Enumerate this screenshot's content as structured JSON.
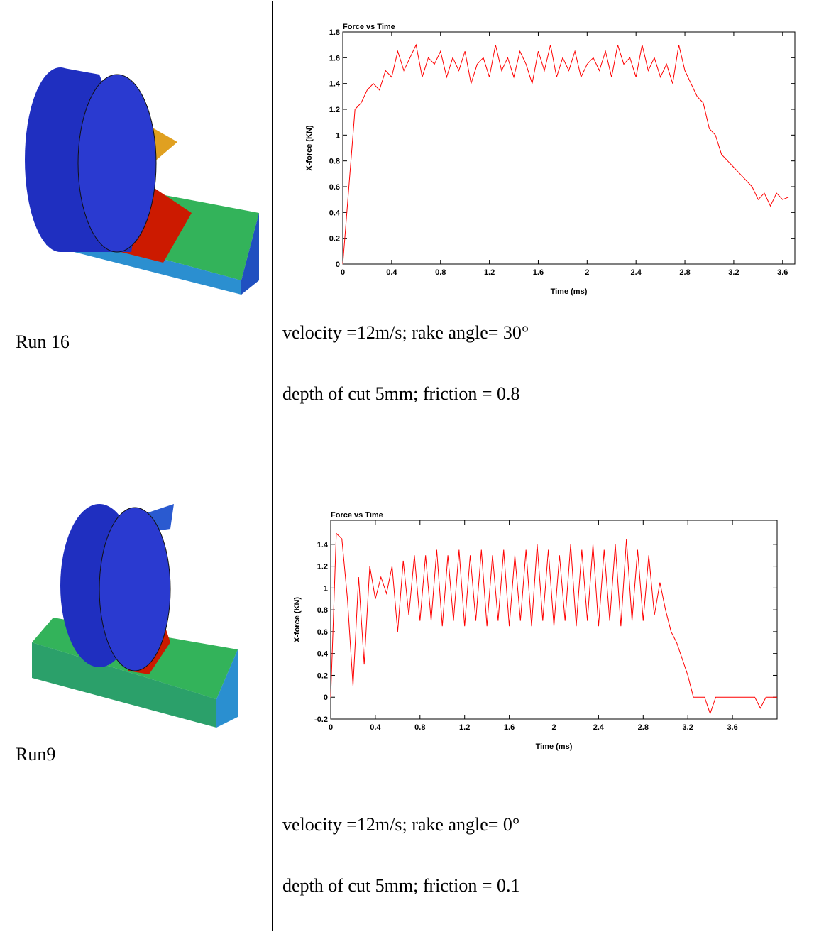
{
  "table": {
    "rows": [
      {
        "label": "Run 16",
        "lines": [
          "velocity =12m/s; rake angle= 30°",
          "depth of cut 5mm;  friction = 0.8"
        ]
      },
      {
        "label": "Run9",
        "lines": [
          "velocity =12m/s; rake angle= 0°",
          "depth of cut 5mm; friction = 0.1"
        ]
      }
    ]
  },
  "chart_data": [
    {
      "type": "line",
      "title": "Force vs Time",
      "x_label": "Time (ms)",
      "y_label": "X-force (KN)",
      "xlim": [
        0,
        3.7
      ],
      "ylim": [
        0,
        1.8
      ],
      "xticks": [
        0,
        0.4,
        0.8,
        1.2,
        1.6,
        2,
        2.4,
        2.8,
        3.2,
        3.6
      ],
      "yticks": [
        0,
        0.2,
        0.4,
        0.6,
        0.8,
        1,
        1.2,
        1.4,
        1.6,
        1.8
      ],
      "color": "#ff0000",
      "x": [
        0,
        0.05,
        0.1,
        0.15,
        0.2,
        0.25,
        0.3,
        0.35,
        0.4,
        0.45,
        0.5,
        0.55,
        0.6,
        0.65,
        0.7,
        0.75,
        0.8,
        0.85,
        0.9,
        0.95,
        1.0,
        1.05,
        1.1,
        1.15,
        1.2,
        1.25,
        1.3,
        1.35,
        1.4,
        1.45,
        1.5,
        1.55,
        1.6,
        1.65,
        1.7,
        1.75,
        1.8,
        1.85,
        1.9,
        1.95,
        2.0,
        2.05,
        2.1,
        2.15,
        2.2,
        2.25,
        2.3,
        2.35,
        2.4,
        2.45,
        2.5,
        2.55,
        2.6,
        2.65,
        2.7,
        2.75,
        2.8,
        2.85,
        2.9,
        2.95,
        3.0,
        3.05,
        3.1,
        3.15,
        3.2,
        3.25,
        3.3,
        3.35,
        3.4,
        3.45,
        3.5,
        3.55,
        3.6,
        3.65
      ],
      "values": [
        0,
        0.6,
        1.2,
        1.25,
        1.35,
        1.4,
        1.35,
        1.5,
        1.45,
        1.65,
        1.5,
        1.6,
        1.7,
        1.45,
        1.6,
        1.55,
        1.65,
        1.45,
        1.6,
        1.5,
        1.65,
        1.4,
        1.55,
        1.6,
        1.45,
        1.7,
        1.5,
        1.6,
        1.45,
        1.65,
        1.55,
        1.4,
        1.65,
        1.5,
        1.7,
        1.45,
        1.6,
        1.5,
        1.65,
        1.45,
        1.55,
        1.6,
        1.5,
        1.65,
        1.45,
        1.7,
        1.55,
        1.6,
        1.45,
        1.7,
        1.5,
        1.6,
        1.45,
        1.55,
        1.4,
        1.7,
        1.5,
        1.4,
        1.3,
        1.25,
        1.05,
        1.0,
        0.85,
        0.8,
        0.75,
        0.7,
        0.65,
        0.6,
        0.5,
        0.55,
        0.45,
        0.55,
        0.5,
        0.52
      ]
    },
    {
      "type": "line",
      "title": "Force vs Time",
      "x_label": "Time (ms)",
      "y_label": "X-force (KN)",
      "xlim": [
        0,
        4
      ],
      "ylim": [
        -0.2,
        1.62
      ],
      "xticks": [
        0,
        0.4,
        0.8,
        1.2,
        1.6,
        2,
        2.4,
        2.8,
        3.2,
        3.6
      ],
      "yticks": [
        -0.2,
        0,
        0.2,
        0.4,
        0.6,
        0.8,
        1,
        1.2,
        1.4
      ],
      "color": "#ff0000",
      "x": [
        0,
        0.05,
        0.1,
        0.15,
        0.2,
        0.25,
        0.3,
        0.35,
        0.4,
        0.45,
        0.5,
        0.55,
        0.6,
        0.65,
        0.7,
        0.75,
        0.8,
        0.85,
        0.9,
        0.95,
        1.0,
        1.05,
        1.1,
        1.15,
        1.2,
        1.25,
        1.3,
        1.35,
        1.4,
        1.45,
        1.5,
        1.55,
        1.6,
        1.65,
        1.7,
        1.75,
        1.8,
        1.85,
        1.9,
        1.95,
        2.0,
        2.05,
        2.1,
        2.15,
        2.2,
        2.25,
        2.3,
        2.35,
        2.4,
        2.45,
        2.5,
        2.55,
        2.6,
        2.65,
        2.7,
        2.75,
        2.8,
        2.85,
        2.9,
        2.95,
        3.0,
        3.05,
        3.1,
        3.15,
        3.2,
        3.25,
        3.3,
        3.35,
        3.4,
        3.45,
        3.5,
        3.55,
        3.6,
        3.65,
        3.7,
        3.75,
        3.8,
        3.85,
        3.9,
        3.95,
        4.0
      ],
      "values": [
        0,
        1.5,
        1.45,
        0.9,
        0.1,
        1.1,
        0.3,
        1.2,
        0.9,
        1.1,
        0.95,
        1.2,
        0.6,
        1.25,
        0.75,
        1.3,
        0.7,
        1.3,
        0.7,
        1.35,
        0.65,
        1.3,
        0.7,
        1.35,
        0.65,
        1.3,
        0.7,
        1.35,
        0.65,
        1.3,
        0.7,
        1.35,
        0.65,
        1.3,
        0.7,
        1.35,
        0.65,
        1.4,
        0.7,
        1.35,
        0.65,
        1.3,
        0.7,
        1.4,
        0.65,
        1.35,
        0.7,
        1.4,
        0.65,
        1.35,
        0.7,
        1.4,
        0.65,
        1.45,
        0.7,
        1.35,
        0.7,
        1.3,
        0.75,
        1.05,
        0.8,
        0.6,
        0.5,
        0.35,
        0.2,
        0,
        0,
        0,
        -0.15,
        0,
        0,
        0,
        0,
        0,
        0,
        0,
        0,
        -0.1,
        0,
        0,
        0
      ]
    }
  ]
}
